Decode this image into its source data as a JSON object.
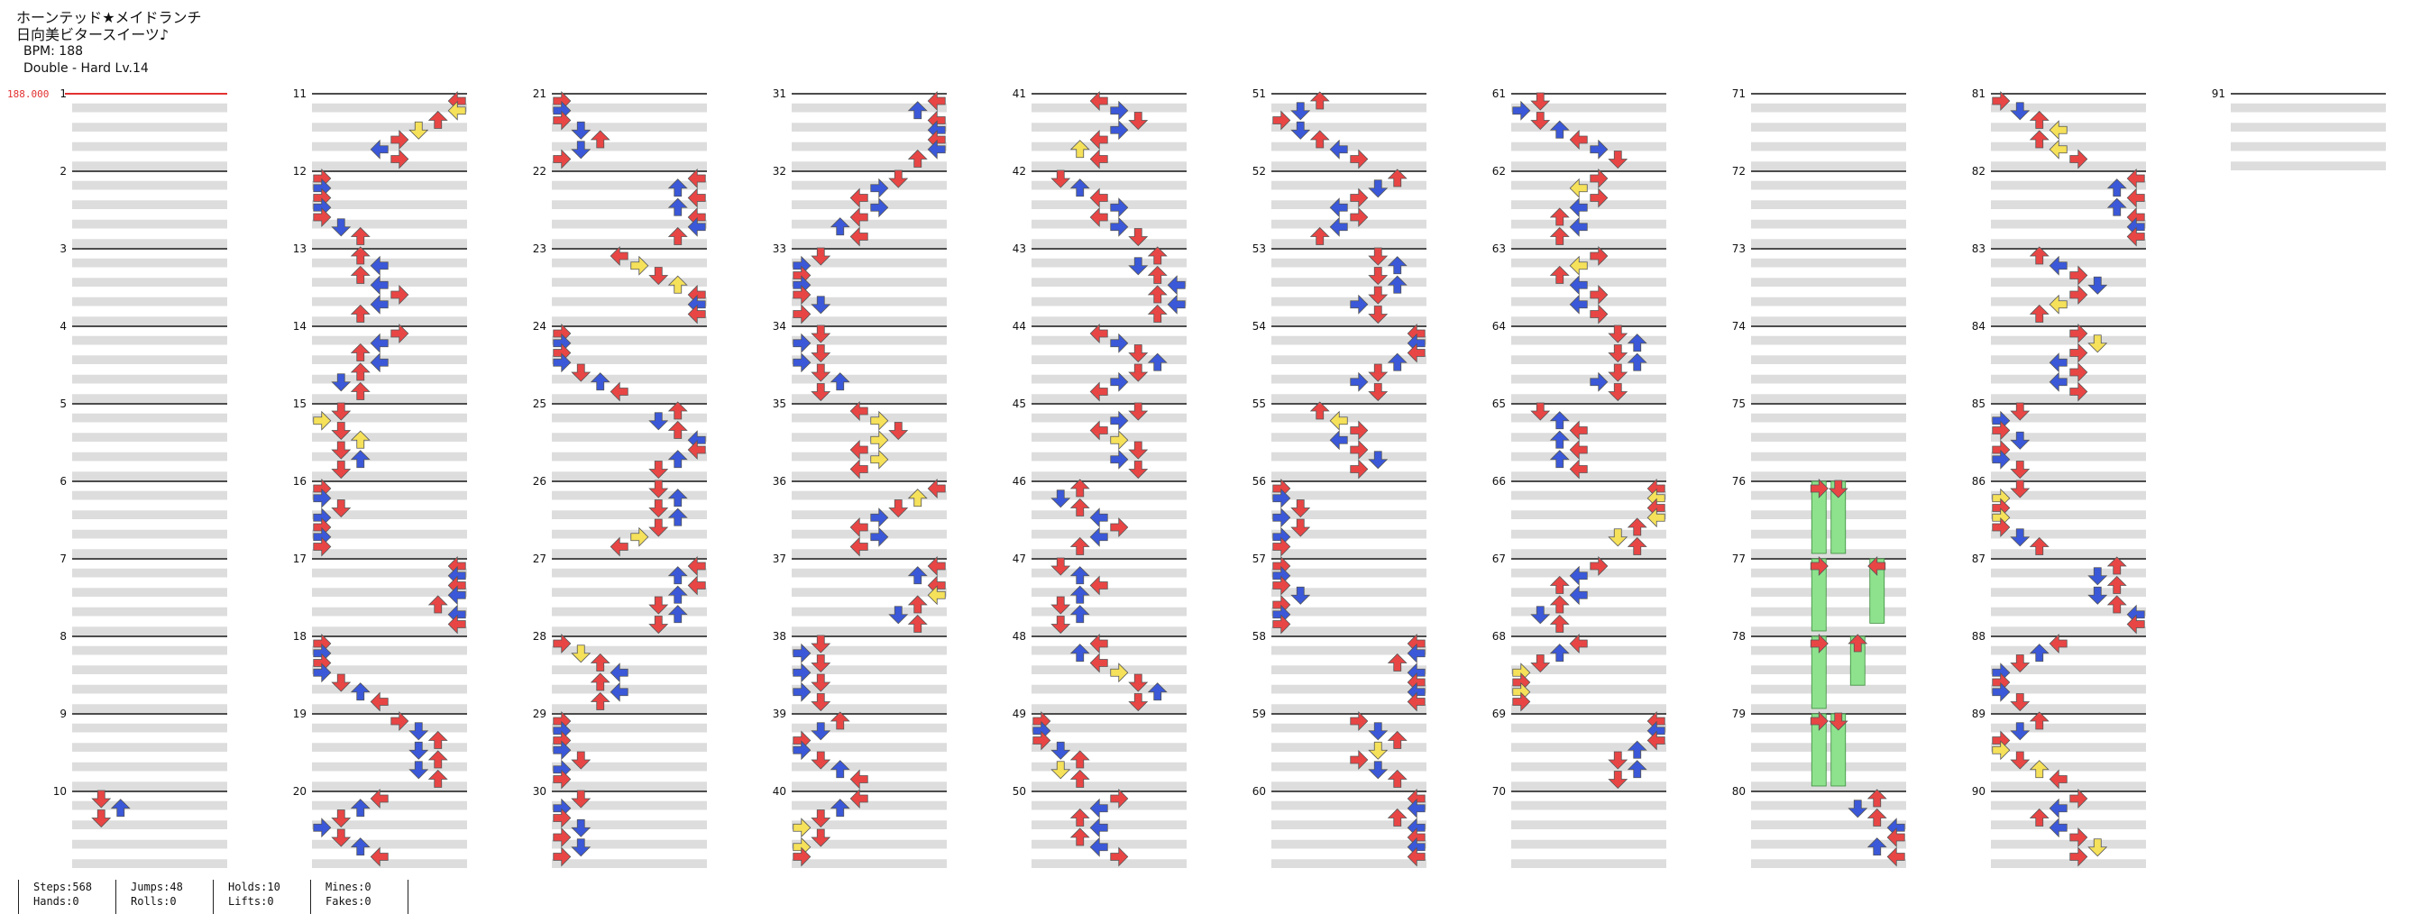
{
  "song": {
    "title": "ホーンテッド★メイドランチ",
    "artist": "日向美ビタースイーツ♪",
    "bpm_label": "BPM: 188",
    "difficulty_label": "Double - Hard Lv.14"
  },
  "bpm_marker": "188.000",
  "measures": {
    "count": 91
  },
  "colors": {
    "quarter": "#e84545",
    "eighth": "#3a58d8",
    "sixteenth": "#f5e15a",
    "hold": "#8ee28e",
    "bpm": "#e23030",
    "stripe": "#dddddd"
  },
  "stats": {
    "steps": "Steps:568",
    "jumps": "Jumps:48",
    "holds": "Holds:10",
    "mines": "Mines:0",
    "hands": "Hands:0",
    "rolls": "Rolls:0",
    "lifts": "Lifts:0",
    "fakes": "Fakes:0"
  }
}
